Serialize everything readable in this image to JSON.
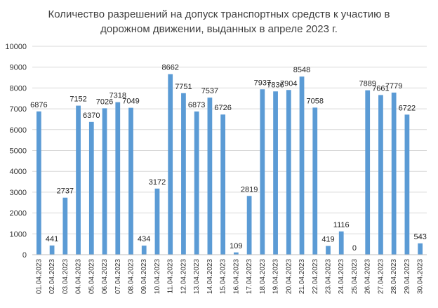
{
  "chart_data": {
    "type": "bar",
    "title_lines": [
      "Количество разрешений на допуск транспортных средств к участию в",
      "дорожном движении, выданных в апреле 2023 г."
    ],
    "xlabel": "",
    "ylabel": "",
    "ylim": [
      0,
      10000
    ],
    "yticks": [
      "0",
      "1000",
      "2000",
      "3000",
      "4000",
      "5000",
      "6000",
      "7000",
      "8000",
      "9000",
      "10000"
    ],
    "grid": true,
    "legend": "none",
    "bar_color": "#5b9bd5",
    "categories": [
      "01.04.2023",
      "02.04.2023",
      "03.04.2023",
      "04.04.2023",
      "05.04.2023",
      "06.04.2023",
      "07.04.2023",
      "08.04.2023",
      "09.04.2023",
      "10.04.2023",
      "11.04.2023",
      "12.04.2023",
      "13.04.2023",
      "14.04.2023",
      "15.04.2023",
      "16.04.2023",
      "17.04.2023",
      "18.04.2023",
      "19.04.2023",
      "20.04.2023",
      "21.04.2023",
      "22.04.2023",
      "23.04.2023",
      "24.04.2023",
      "25.04.2023",
      "26.04.2023",
      "27.04.2023",
      "28.04.2023",
      "29.04.2023",
      "30.04.2023"
    ],
    "values": [
      6876,
      441,
      2737,
      7152,
      6370,
      7026,
      7318,
      7049,
      434,
      3172,
      8662,
      7751,
      6873,
      7537,
      6726,
      109,
      2819,
      7937,
      7836,
      7904,
      8548,
      7058,
      419,
      1116,
      0,
      7889,
      7661,
      7779,
      6722,
      543
    ],
    "data_labels": [
      "6876",
      "441",
      "2737",
      "7152",
      "6370",
      "7026",
      "7318",
      "7049",
      "434",
      "3172",
      "8662",
      "7751",
      "6873",
      "7537",
      "6726",
      "109",
      "2819",
      "7937",
      "7836",
      "7904",
      "8548",
      "7058",
      "419",
      "1116",
      "0",
      "7889",
      "7661",
      "7779",
      "6722",
      "543"
    ]
  }
}
